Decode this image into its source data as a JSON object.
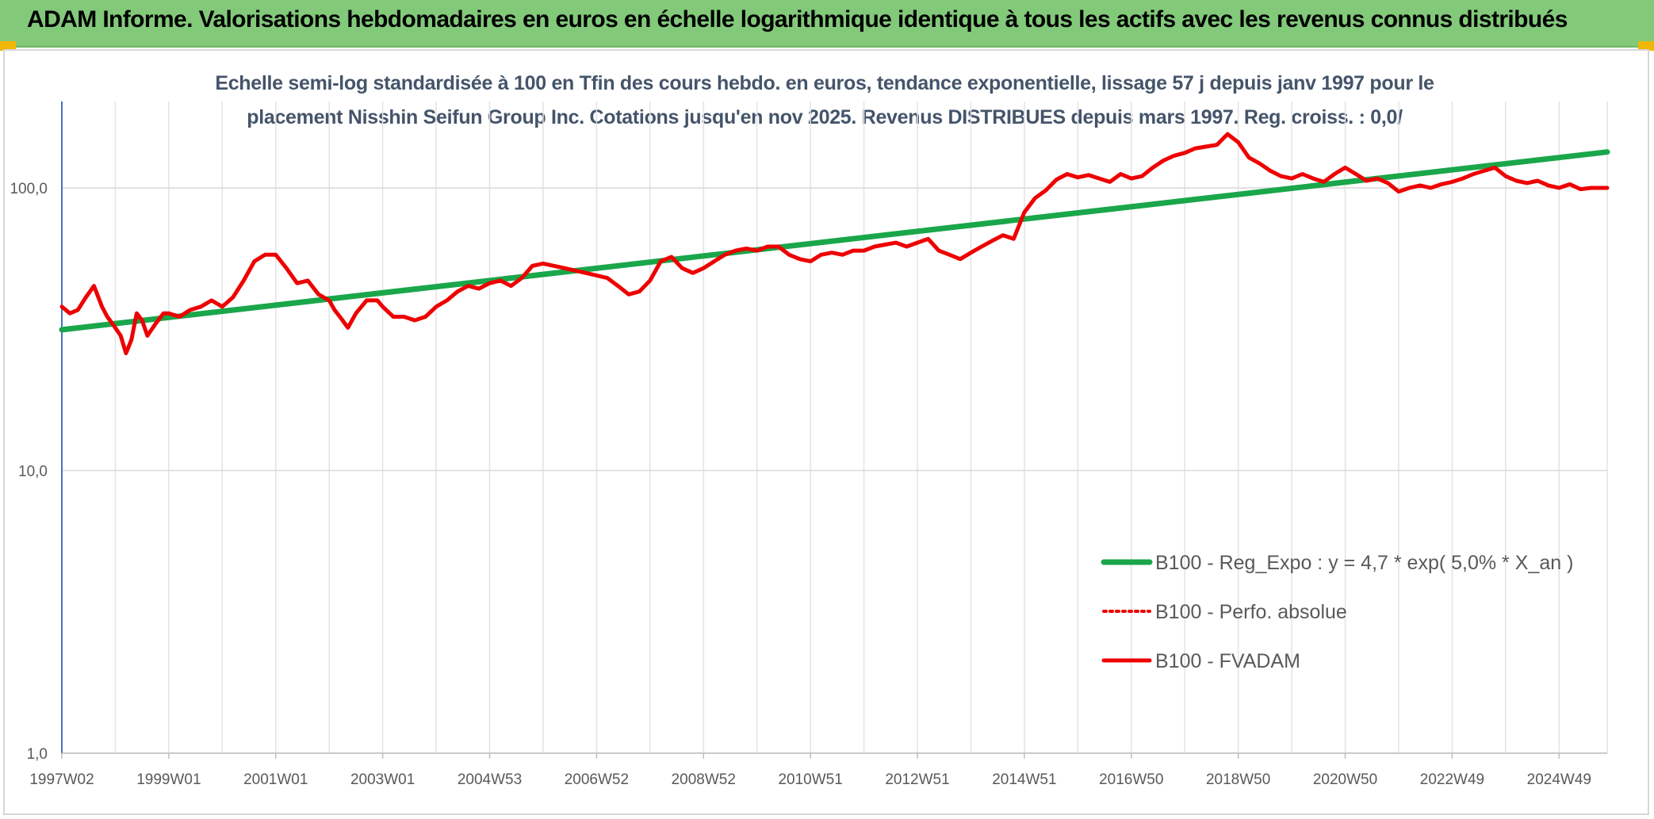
{
  "header": {
    "title": "ADAM Informe. Valorisations hebdomadaires en euros en échelle logarithmique identique à tous les actifs avec les revenus connus distribués"
  },
  "colors": {
    "banner": "#82c97a",
    "trend": "#1aa64a",
    "price": "#ee0000",
    "accent": "#f2b705"
  },
  "chart_data": {
    "type": "line",
    "title_lines": [
      "Echelle semi-log standardisée à 100 en Tfin des cours hebdo. en euros, tendance exponentielle, lissage 57 j depuis janv 1997 pour le",
      "placement Nisshin Seifun Group Inc. Cotations jusqu'en nov 2025. Revenus DISTRIBUES depuis mars 1997. Reg. croiss. : 0,0/"
    ],
    "y_scale": "log",
    "ylim": [
      1,
      180
    ],
    "y_ticks": [
      {
        "value": 1,
        "label": "1,0"
      },
      {
        "value": 10,
        "label": "10,0"
      },
      {
        "value": 100,
        "label": "100,0"
      }
    ],
    "x_range": [
      1997.0,
      2025.9
    ],
    "x_ticks": [
      {
        "value": 1997.0,
        "label": "1997W02"
      },
      {
        "value": 1999.0,
        "label": "1999W01"
      },
      {
        "value": 2001.0,
        "label": "2001W01"
      },
      {
        "value": 2003.0,
        "label": "2003W01"
      },
      {
        "value": 2005.0,
        "label": "2004W53"
      },
      {
        "value": 2007.0,
        "label": "2006W52"
      },
      {
        "value": 2009.0,
        "label": "2008W52"
      },
      {
        "value": 2011.0,
        "label": "2010W51"
      },
      {
        "value": 2013.0,
        "label": "2012W51"
      },
      {
        "value": 2015.0,
        "label": "2014W51"
      },
      {
        "value": 2017.0,
        "label": "2016W50"
      },
      {
        "value": 2019.0,
        "label": "2018W50"
      },
      {
        "value": 2021.0,
        "label": "2020W50"
      },
      {
        "value": 2023.0,
        "label": "2022W49"
      },
      {
        "value": 2025.0,
        "label": "2024W49"
      }
    ],
    "grid": "vertical and horizontal",
    "legend_position": "bottom-right",
    "series": [
      {
        "name": "B100 - Reg_Expo : y = 4,7 * exp( 5,0% *  X_an )",
        "style": "solid-thick",
        "x": [
          1997.0,
          2025.9
        ],
        "y": [
          31.5,
          134
        ]
      },
      {
        "name": "B100 - Perfo. absolue",
        "style": "dotted",
        "x": [],
        "y": []
      },
      {
        "name": "B100 - FVADAM",
        "style": "solid",
        "x": [
          1997.0,
          1997.15,
          1997.3,
          1997.45,
          1997.6,
          1997.75,
          1997.85,
          1997.95,
          1998.0,
          1998.1,
          1998.2,
          1998.3,
          1998.4,
          1998.5,
          1998.6,
          1998.75,
          1998.9,
          1999.0,
          1999.2,
          1999.4,
          1999.6,
          1999.8,
          2000.0,
          2000.2,
          2000.4,
          2000.6,
          2000.8,
          2001.0,
          2001.2,
          2001.4,
          2001.6,
          2001.8,
          2002.0,
          2002.1,
          2002.2,
          2002.35,
          2002.5,
          2002.7,
          2002.9,
          2003.0,
          2003.2,
          2003.4,
          2003.6,
          2003.8,
          2004.0,
          2004.2,
          2004.4,
          2004.6,
          2004.8,
          2005.0,
          2005.2,
          2005.4,
          2005.6,
          2005.8,
          2006.0,
          2006.2,
          2006.4,
          2006.6,
          2006.8,
          2007.0,
          2007.2,
          2007.4,
          2007.6,
          2007.8,
          2008.0,
          2008.2,
          2008.4,
          2008.6,
          2008.8,
          2009.0,
          2009.2,
          2009.4,
          2009.6,
          2009.8,
          2010.0,
          2010.2,
          2010.4,
          2010.6,
          2010.8,
          2011.0,
          2011.2,
          2011.4,
          2011.6,
          2011.8,
          2012.0,
          2012.2,
          2012.4,
          2012.6,
          2012.8,
          2013.0,
          2013.2,
          2013.4,
          2013.6,
          2013.8,
          2014.0,
          2014.2,
          2014.4,
          2014.6,
          2014.8,
          2015.0,
          2015.2,
          2015.4,
          2015.6,
          2015.8,
          2016.0,
          2016.2,
          2016.4,
          2016.6,
          2016.8,
          2017.0,
          2017.2,
          2017.4,
          2017.6,
          2017.8,
          2018.0,
          2018.2,
          2018.4,
          2018.6,
          2018.8,
          2019.0,
          2019.2,
          2019.4,
          2019.6,
          2019.8,
          2020.0,
          2020.2,
          2020.4,
          2020.6,
          2020.8,
          2021.0,
          2021.2,
          2021.4,
          2021.6,
          2021.8,
          2022.0,
          2022.2,
          2022.4,
          2022.6,
          2022.8,
          2023.0,
          2023.2,
          2023.4,
          2023.6,
          2023.8,
          2024.0,
          2024.2,
          2024.4,
          2024.6,
          2024.8,
          2025.0,
          2025.2,
          2025.4,
          2025.6,
          2025.9
        ],
        "y": [
          38,
          36,
          37,
          41,
          45,
          38,
          35,
          33,
          32,
          30,
          26,
          29,
          36,
          34,
          30,
          33,
          36,
          36,
          35,
          37,
          38,
          40,
          38,
          41,
          47,
          55,
          58,
          58,
          52,
          46,
          47,
          42,
          40,
          37,
          35,
          32,
          36,
          40,
          40,
          38,
          35,
          35,
          34,
          35,
          38,
          40,
          43,
          45,
          44,
          46,
          47,
          45,
          48,
          53,
          54,
          53,
          52,
          51,
          50,
          49,
          48,
          45,
          42,
          43,
          47,
          55,
          57,
          52,
          50,
          52,
          55,
          58,
          60,
          61,
          60,
          62,
          62,
          58,
          56,
          55,
          58,
          59,
          58,
          60,
          60,
          62,
          63,
          64,
          62,
          64,
          66,
          60,
          58,
          56,
          59,
          62,
          65,
          68,
          66,
          82,
          92,
          98,
          107,
          112,
          109,
          111,
          108,
          105,
          112,
          108,
          110,
          118,
          125,
          130,
          133,
          138,
          140,
          142,
          155,
          145,
          128,
          122,
          115,
          110,
          108,
          112,
          108,
          105,
          112,
          118,
          112,
          106,
          108,
          104,
          97,
          100,
          102,
          100,
          103,
          105,
          108,
          112,
          115,
          118,
          110,
          106,
          104,
          106,
          102,
          100,
          103,
          99,
          100,
          100
        ]
      }
    ]
  }
}
